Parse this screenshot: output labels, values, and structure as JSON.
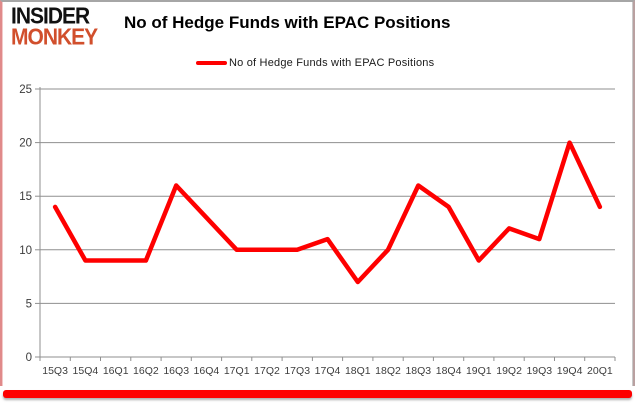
{
  "logo": {
    "line1": "INSIDER",
    "line2": "MONKEY"
  },
  "header": {
    "title": "No of Hedge Funds with EPAC Positions"
  },
  "legend": {
    "label": "No of Hedge Funds with EPAC Positions"
  },
  "colors": {
    "series": "#fe0000",
    "gridline": "#8f8f8f",
    "axis_line": "#8f8f8f",
    "tick_label": "#3d3d3d",
    "logo_accent": "#d14f2c",
    "bottom_bar": "#fe0000"
  },
  "chart_data": {
    "type": "line",
    "title": "No of Hedge Funds with EPAC Positions",
    "categories": [
      "15Q3",
      "15Q4",
      "16Q1",
      "16Q2",
      "16Q3",
      "16Q4",
      "17Q1",
      "17Q2",
      "17Q3",
      "17Q4",
      "18Q1",
      "18Q2",
      "18Q3",
      "18Q4",
      "19Q1",
      "19Q2",
      "19Q3",
      "19Q4",
      "20Q1"
    ],
    "series": [
      {
        "name": "No of Hedge Funds with EPAC Positions",
        "values": [
          14,
          9,
          9,
          9,
          16,
          13,
          10,
          10,
          10,
          11,
          7,
          10,
          16,
          14,
          9,
          12,
          11,
          20,
          14
        ]
      }
    ],
    "xlabel": "",
    "ylabel": "",
    "ylim": [
      0,
      25
    ],
    "yticks": [
      0,
      5,
      10,
      15,
      20,
      25
    ],
    "grid": true,
    "legend_position": "top-center"
  }
}
